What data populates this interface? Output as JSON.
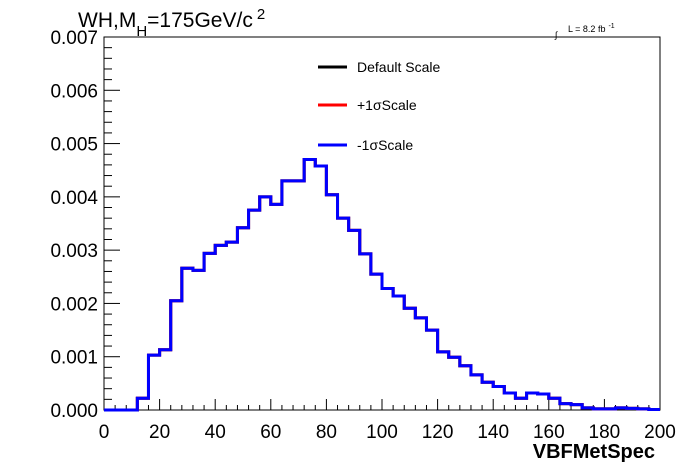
{
  "chart_data": {
    "type": "line",
    "title_parts": {
      "main": "WH,M",
      "sub": "H",
      "rest": "=175GeV/c",
      "sup": "2"
    },
    "lumi": {
      "integral": "∫",
      "text": "L = 8.2 fb",
      "sup": "-1"
    },
    "xlabel": "VBFMetSpec",
    "ylabel": "",
    "xlim": [
      0,
      200
    ],
    "ylim": [
      0,
      0.007
    ],
    "x_ticks": [
      "0",
      "20",
      "40",
      "60",
      "80",
      "100",
      "120",
      "140",
      "160",
      "180",
      "200"
    ],
    "y_ticks": [
      "0.000",
      "0.001",
      "0.002",
      "0.003",
      "0.004",
      "0.005",
      "0.006",
      "0.007"
    ],
    "bin_width": 4,
    "bin_edges_start": 0,
    "values": [
      0,
      0,
      0,
      0.00022,
      0.00103,
      0.00113,
      0.00205,
      0.00266,
      0.00262,
      0.00294,
      0.00309,
      0.00315,
      0.00342,
      0.00375,
      0.004,
      0.00386,
      0.0043,
      0.0043,
      0.0047,
      0.00458,
      0.00404,
      0.0036,
      0.00337,
      0.00293,
      0.00255,
      0.00228,
      0.00214,
      0.00191,
      0.00173,
      0.0015,
      0.00109,
      0.00099,
      0.00083,
      0.00066,
      0.00052,
      0.00044,
      0.00032,
      0.00022,
      0.00032,
      0.0003,
      0.00022,
      0.00012,
      0.0001,
      4e-05,
      2e-05,
      2e-05,
      4e-05,
      3e-05,
      2e-05,
      1e-05
    ],
    "series": [
      {
        "name": "Default Scale",
        "color": "#000000"
      },
      {
        "name": "+1σScale",
        "color": "#ff0000"
      },
      {
        "name": "-1σScale",
        "color": "#0000ff"
      }
    ],
    "legend_position": "top-center",
    "grid": false
  }
}
